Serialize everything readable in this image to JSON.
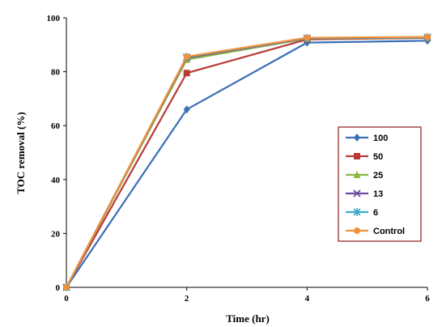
{
  "chart_data": {
    "type": "line",
    "xlabel": "Time (hr)",
    "ylabel": "TOC removal (%)",
    "xlim": [
      0,
      6
    ],
    "ylim": [
      0,
      100
    ],
    "x_ticks": [
      "0",
      "2",
      "4",
      "6"
    ],
    "y_ticks": [
      "0",
      "20",
      "40",
      "60",
      "80",
      "100"
    ],
    "legend_position": "right",
    "grid": false,
    "x": [
      0,
      2,
      4,
      6
    ],
    "series": [
      {
        "name": "100",
        "color": "#3b6fb6",
        "marker": "diamond",
        "values": [
          0,
          66,
          90.8,
          91.5
        ]
      },
      {
        "name": "50",
        "color": "#b83a36",
        "marker": "square",
        "values": [
          0,
          79.5,
          92,
          92.5
        ]
      },
      {
        "name": "25",
        "color": "#8db641",
        "marker": "triangle",
        "values": [
          0,
          84.5,
          92.3,
          92.6
        ]
      },
      {
        "name": "13",
        "color": "#6b4a9b",
        "marker": "x",
        "values": [
          0,
          85.2,
          92.4,
          92.7
        ]
      },
      {
        "name": "6",
        "color": "#3fa9c3",
        "marker": "asterisk",
        "values": [
          0,
          85.5,
          92.5,
          92.8
        ]
      },
      {
        "name": "Control",
        "color": "#f0913b",
        "marker": "circle",
        "values": [
          0,
          85.6,
          92.6,
          92.9
        ]
      }
    ]
  }
}
